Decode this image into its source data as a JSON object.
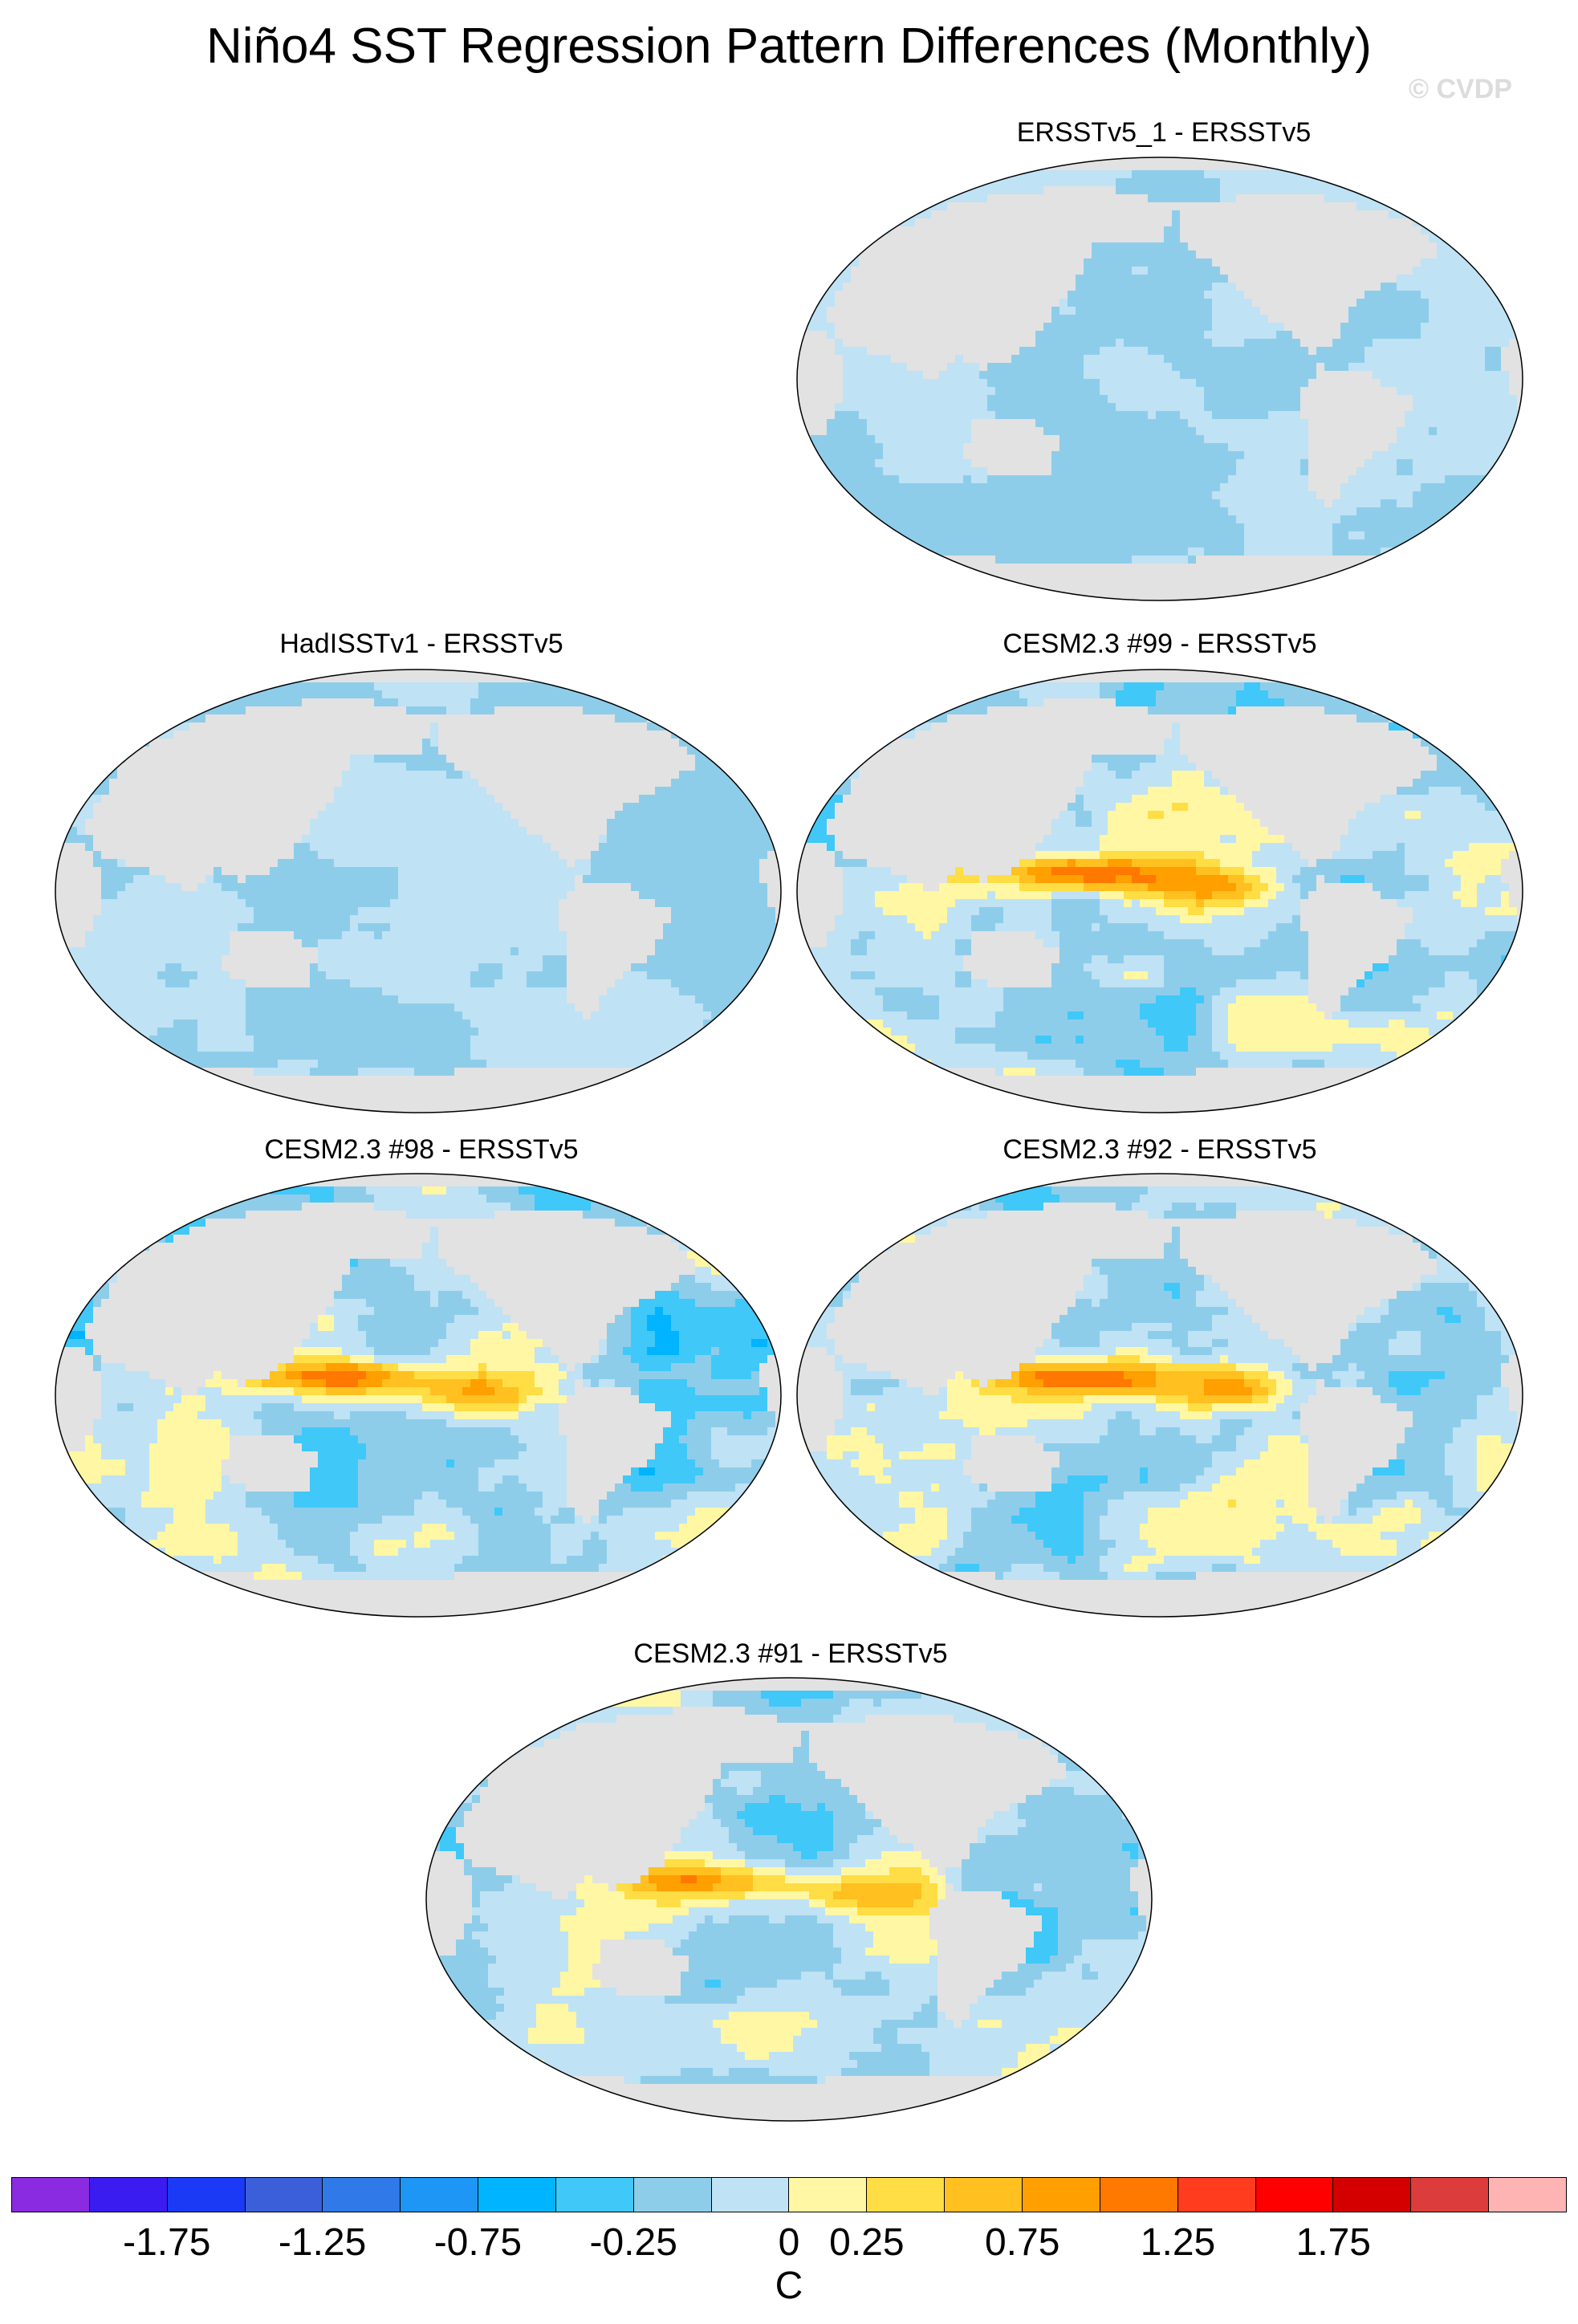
{
  "title": "Niño4 SST Regression Pattern Differences (Monthly)",
  "watermark": "© CVDP",
  "panels": [
    {
      "id": "p1",
      "title": "ERSSTv5_1 - ERSSTv5",
      "amp": 0.2
    },
    {
      "id": "p2",
      "title": "HadISSTv1 - ERSSTv5",
      "amp": 0.35
    },
    {
      "id": "p3",
      "title": "CESM2.3 #99 - ERSSTv5",
      "amp": 0.7
    },
    {
      "id": "p4",
      "title": "CESM2.3 #98 - ERSSTv5",
      "amp": 0.75
    },
    {
      "id": "p5",
      "title": "CESM2.3 #92 - ERSSTv5",
      "amp": 0.75
    },
    {
      "id": "p6",
      "title": "CESM2.3 #91 - ERSSTv5",
      "amp": 0.6
    }
  ],
  "colorbar": {
    "unit": "C",
    "levels": [
      -2.0,
      -1.75,
      -1.5,
      -1.25,
      -1.0,
      -0.75,
      -0.5,
      -0.25,
      0,
      0.25,
      0.5,
      0.75,
      1.0,
      1.25,
      1.5,
      1.75,
      2.0
    ],
    "tick_labels": [
      "-1.75",
      "-1.25",
      "-0.75",
      "-0.25",
      "0",
      "0.25",
      "0.75",
      "1.25",
      "1.75"
    ],
    "colors": [
      "#8a2be2",
      "#3a1cf0",
      "#1a3af5",
      "#3a5fd9",
      "#2f7ae8",
      "#1e96f5",
      "#00b4ff",
      "#40c8f8",
      "#8ecdea",
      "#bfe2f5",
      "#fff7a3",
      "#ffdd44",
      "#ffc020",
      "#ff9f00",
      "#ff7800",
      "#ff3c1e",
      "#ff0000",
      "#d40000",
      "#dd3c3c",
      "#ffb4b4"
    ]
  }
}
